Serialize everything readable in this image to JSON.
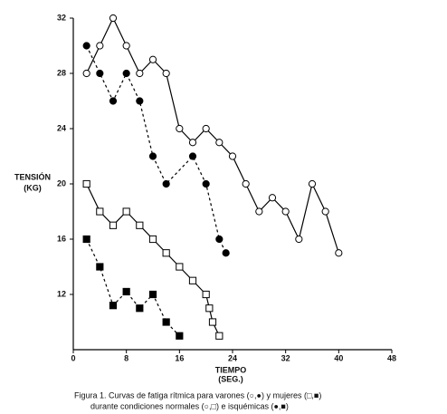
{
  "chart_data": {
    "type": "line",
    "y_label": [
      "TENSIÓN",
      "(KG)"
    ],
    "x_label": [
      "TIEMPO",
      "(SEG.)"
    ],
    "caption": [
      "Figura 1.  Curvas de fatiga rítmica para varones (○,●) y mujeres (□,■)",
      "durante condiciones normales  (○,□)  e isquémicas (●,■)"
    ],
    "xlim": [
      0,
      48
    ],
    "xticks": [
      0,
      8,
      16,
      24,
      32,
      40,
      48
    ],
    "ylim": [
      8,
      32
    ],
    "yticks": [
      12,
      16,
      20,
      24,
      28,
      32
    ],
    "series": [
      {
        "marker": "circle",
        "filled": false,
        "dashed": false,
        "color": "#000000",
        "x": [
          2,
          4,
          6,
          8,
          10,
          12,
          14,
          16,
          18,
          20,
          22,
          24,
          26,
          28,
          30,
          32,
          34,
          36,
          38,
          40
        ],
        "values": [
          28,
          30,
          32,
          30,
          28,
          29,
          28,
          24,
          23,
          24,
          23,
          22,
          20,
          18,
          19,
          18,
          16,
          20,
          18,
          15
        ]
      },
      {
        "marker": "circle",
        "filled": true,
        "dashed": true,
        "color": "#000000",
        "x": [
          2,
          4,
          6,
          8,
          10,
          12,
          14,
          18,
          20,
          22,
          23
        ],
        "values": [
          30,
          28,
          26,
          28,
          26,
          22,
          20,
          22,
          20,
          16,
          15
        ]
      },
      {
        "marker": "square",
        "filled": false,
        "dashed": false,
        "color": "#000000",
        "x": [
          2,
          4,
          6,
          8,
          10,
          12,
          14,
          16,
          18,
          20,
          20.5,
          21,
          22
        ],
        "values": [
          20,
          18,
          17,
          18,
          17,
          16,
          15,
          14,
          13,
          12,
          11,
          10,
          9
        ]
      },
      {
        "marker": "square",
        "filled": true,
        "dashed": true,
        "color": "#000000",
        "x": [
          2,
          4,
          6,
          8,
          10,
          12,
          14,
          16
        ],
        "values": [
          16,
          14,
          11.2,
          12.2,
          11,
          12,
          10,
          9
        ]
      }
    ]
  }
}
